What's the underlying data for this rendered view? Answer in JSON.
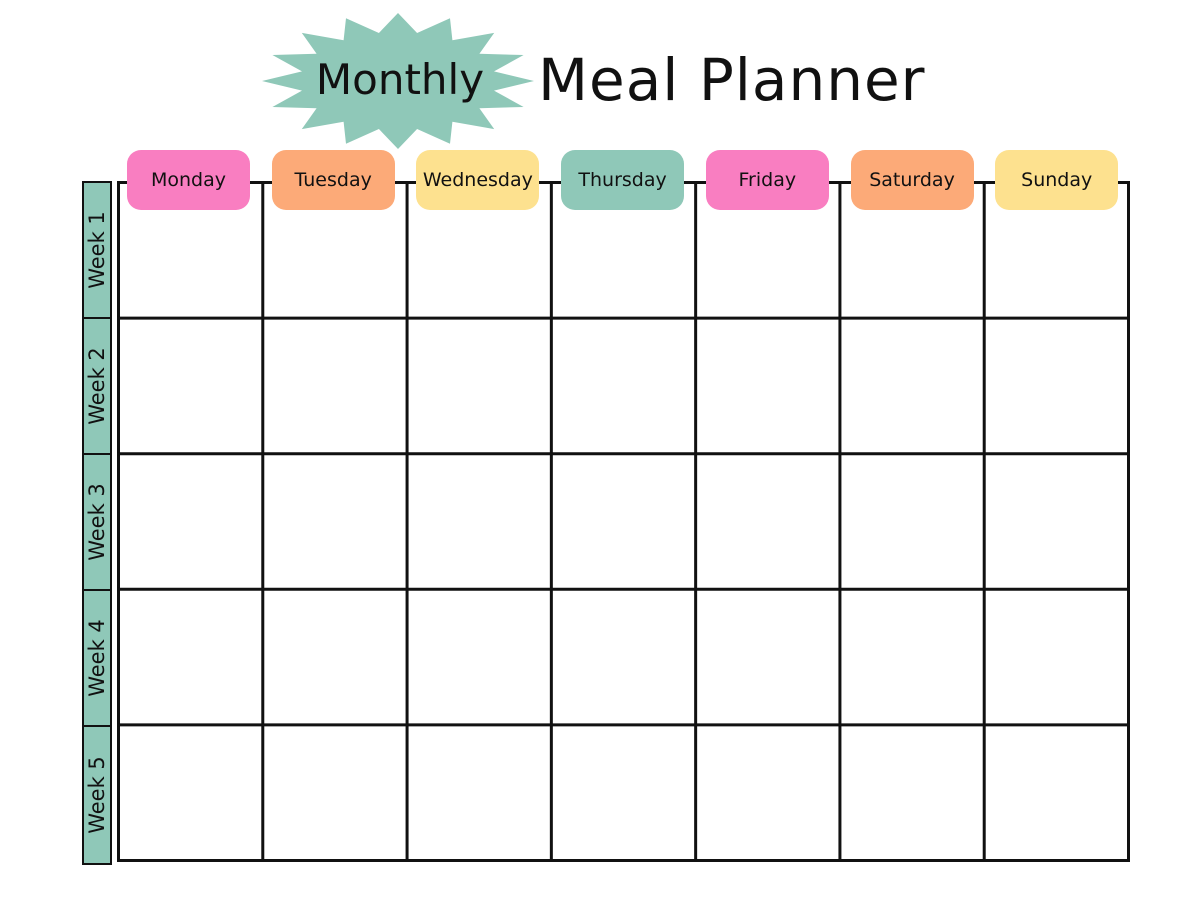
{
  "title": {
    "badge": "Monthly",
    "main": "Meal Planner"
  },
  "colors": {
    "teal": "#8fc8b8",
    "pink": "#f97ec1",
    "orange": "#fcaa78",
    "yellow": "#fde18f",
    "line": "#111111"
  },
  "days": [
    {
      "label": "Monday",
      "color": "#f97ec1"
    },
    {
      "label": "Tuesday",
      "color": "#fcaa78"
    },
    {
      "label": "Wednesday",
      "color": "#fde18f"
    },
    {
      "label": "Thursday",
      "color": "#8fc8b8"
    },
    {
      "label": "Friday",
      "color": "#f97ec1"
    },
    {
      "label": "Saturday",
      "color": "#fcaa78"
    },
    {
      "label": "Sunday",
      "color": "#fde18f"
    }
  ],
  "weeks": [
    "Week 1",
    "Week 2",
    "Week 3",
    "Week 4",
    "Week 5"
  ]
}
